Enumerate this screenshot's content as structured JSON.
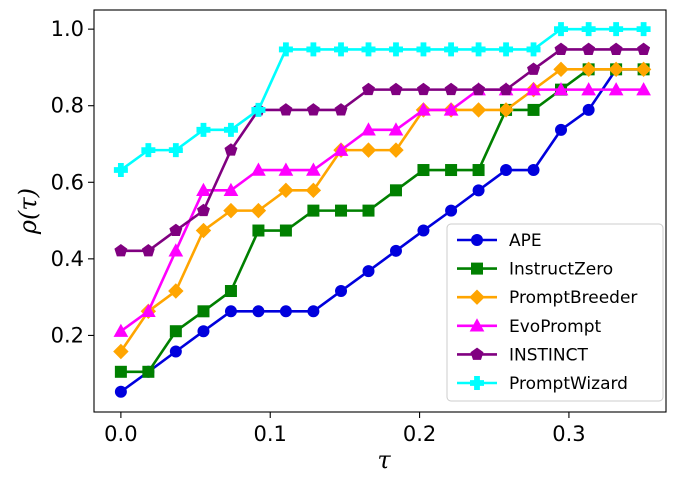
{
  "chart_data": {
    "type": "line",
    "xlabel": "τ",
    "ylabel": "ρ(τ)",
    "xlim": [
      -0.018,
      0.365
    ],
    "ylim": [
      0.0,
      1.05
    ],
    "xticks": [
      0.0,
      0.1,
      0.2,
      0.3
    ],
    "xtick_labels": [
      "0.0",
      "0.1",
      "0.2",
      "0.3"
    ],
    "yticks": [
      0.2,
      0.4,
      0.6,
      0.8,
      1.0
    ],
    "ytick_labels": [
      "0.2",
      "0.4",
      "0.6",
      "0.8",
      "1.0"
    ],
    "legend_position": "bottom-right",
    "grid": false,
    "x": [
      0.0,
      0.0184,
      0.0368,
      0.0553,
      0.0737,
      0.0921,
      0.1105,
      0.1289,
      0.1474,
      0.1658,
      0.1842,
      0.2026,
      0.2211,
      0.2395,
      0.2579,
      0.2763,
      0.2947,
      0.3132,
      0.3316,
      0.35
    ],
    "series": [
      {
        "name": "APE",
        "color": "#0000dd",
        "marker": "circle",
        "values": [
          0.053,
          0.105,
          0.158,
          0.211,
          0.263,
          0.263,
          0.263,
          0.263,
          0.316,
          0.368,
          0.421,
          0.474,
          0.526,
          0.579,
          0.632,
          0.632,
          0.737,
          0.789,
          0.895,
          0.895
        ]
      },
      {
        "name": "InstructZero",
        "color": "#008000",
        "marker": "square",
        "values": [
          0.105,
          0.105,
          0.211,
          0.263,
          0.316,
          0.474,
          0.474,
          0.526,
          0.526,
          0.526,
          0.579,
          0.632,
          0.632,
          0.632,
          0.789,
          0.789,
          0.842,
          0.895,
          0.895,
          0.895
        ]
      },
      {
        "name": "PromptBreeder",
        "color": "#ffa500",
        "marker": "diamond",
        "values": [
          0.158,
          0.263,
          0.316,
          0.474,
          0.526,
          0.526,
          0.579,
          0.579,
          0.684,
          0.684,
          0.684,
          0.789,
          0.789,
          0.789,
          0.789,
          0.842,
          0.895,
          0.895,
          0.895,
          0.895
        ]
      },
      {
        "name": "EvoPrompt",
        "color": "#ff00ff",
        "marker": "triangle",
        "values": [
          0.211,
          0.263,
          0.421,
          0.579,
          0.579,
          0.632,
          0.632,
          0.632,
          0.684,
          0.737,
          0.737,
          0.789,
          0.789,
          0.842,
          0.842,
          0.842,
          0.842,
          0.842,
          0.842,
          0.842
        ]
      },
      {
        "name": "INSTINCT",
        "color": "#800080",
        "marker": "pentagon",
        "values": [
          0.421,
          0.421,
          0.474,
          0.526,
          0.684,
          0.789,
          0.789,
          0.789,
          0.789,
          0.842,
          0.842,
          0.842,
          0.842,
          0.842,
          0.842,
          0.895,
          0.947,
          0.947,
          0.947,
          0.947
        ]
      },
      {
        "name": "PromptWizard",
        "color": "#00ffff",
        "marker": "plus",
        "values": [
          0.632,
          0.684,
          0.684,
          0.737,
          0.737,
          0.789,
          0.947,
          0.947,
          0.947,
          0.947,
          0.947,
          0.947,
          0.947,
          0.947,
          0.947,
          0.947,
          1.0,
          1.0,
          1.0,
          1.0
        ]
      }
    ]
  }
}
